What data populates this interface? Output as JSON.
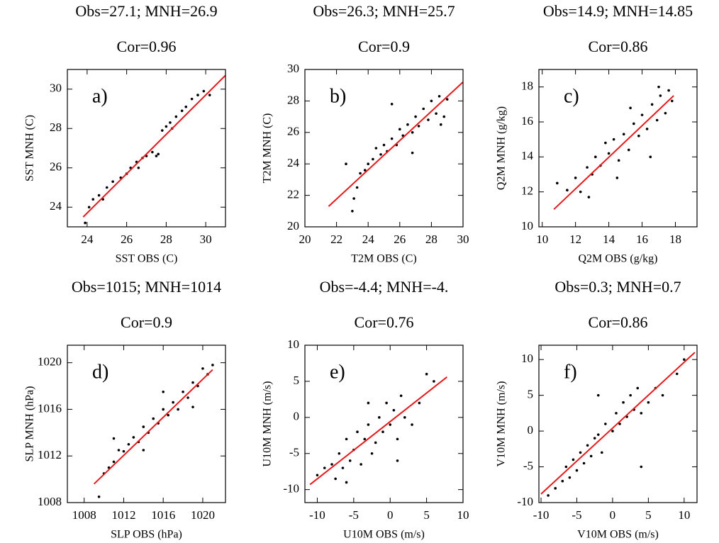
{
  "chart_data": [
    {
      "type": "scatter",
      "title": "Obs=27.1; MNH=26.9",
      "subtitle": "Cor=0.96",
      "panel_label": "a)",
      "xlabel": "SST OBS (C)",
      "ylabel": "SST MNH (C)",
      "xlim": [
        23,
        31
      ],
      "ylim": [
        23,
        31
      ],
      "xticks": [
        24,
        26,
        28,
        30
      ],
      "yticks": [
        24,
        26,
        28,
        30
      ],
      "series": [
        {
          "color": "#000000",
          "x": [
            23.9,
            24.1,
            24.3,
            24.6,
            25.0,
            25.3,
            25.7,
            26.0,
            26.2,
            26.5,
            26.8,
            27.0,
            27.3,
            27.5,
            27.8,
            28.0,
            28.2,
            28.5,
            28.8,
            29.0,
            29.3,
            29.6,
            29.9,
            30.2,
            24.8,
            26.6,
            27.6,
            28.3
          ],
          "values": [
            23.2,
            24.0,
            24.4,
            24.6,
            25.0,
            25.3,
            25.5,
            25.7,
            26.0,
            26.3,
            26.5,
            26.6,
            26.8,
            26.6,
            27.9,
            28.1,
            28.3,
            28.6,
            28.9,
            29.1,
            29.5,
            29.7,
            29.9,
            29.7,
            24.4,
            26.0,
            26.7,
            28.0
          ]
        },
        {
          "type": "line",
          "color": "#e41a1c",
          "x": [
            23.8,
            31
          ],
          "values": [
            23.5,
            30.7
          ]
        }
      ]
    },
    {
      "type": "scatter",
      "title": "Obs=26.3; MNH=25.7",
      "subtitle": "Cor=0.9",
      "panel_label": "b)",
      "xlabel": "T2M OBS (C)",
      "ylabel": "T2M MNH (C)",
      "xlim": [
        20,
        30
      ],
      "ylim": [
        20,
        30
      ],
      "xticks": [
        20,
        22,
        24,
        26,
        28,
        30
      ],
      "yticks": [
        20,
        22,
        24,
        26,
        28,
        30
      ],
      "series": [
        {
          "color": "#000000",
          "x": [
            23.0,
            23.1,
            23.3,
            23.5,
            23.8,
            24.0,
            24.3,
            24.5,
            24.8,
            25.0,
            25.2,
            25.5,
            25.8,
            26.0,
            26.2,
            26.5,
            26.8,
            27.0,
            27.2,
            27.5,
            27.8,
            28.0,
            28.3,
            28.5,
            28.8,
            29.0,
            22.6,
            25.5,
            26.8,
            28.6
          ],
          "values": [
            21.0,
            21.8,
            22.5,
            23.4,
            23.6,
            24.0,
            24.3,
            25.0,
            24.6,
            25.2,
            24.8,
            25.6,
            25.2,
            26.2,
            25.8,
            26.5,
            26.0,
            27.0,
            26.4,
            27.5,
            26.8,
            28.0,
            27.2,
            28.3,
            27.0,
            28.1,
            24.0,
            27.8,
            24.7,
            26.5
          ]
        },
        {
          "type": "line",
          "color": "#e41a1c",
          "x": [
            21.5,
            30
          ],
          "values": [
            21.3,
            29.2
          ]
        }
      ]
    },
    {
      "type": "scatter",
      "title": "Obs=14.9; MNH=14.85",
      "subtitle": "Cor=0.86",
      "panel_label": "c)",
      "xlabel": "Q2M OBS (g/kg)",
      "ylabel": "Q2M MNH (g/kg)",
      "xlim": [
        9.8,
        19.3
      ],
      "ylim": [
        10,
        19
      ],
      "xticks": [
        10,
        12,
        14,
        16,
        18
      ],
      "yticks": [
        10,
        12,
        14,
        16,
        18
      ],
      "series": [
        {
          "color": "#000000",
          "x": [
            10.9,
            11.5,
            12.0,
            12.3,
            12.7,
            13.0,
            13.2,
            13.5,
            13.8,
            14.0,
            14.3,
            14.6,
            14.9,
            15.2,
            15.5,
            15.8,
            16.0,
            16.3,
            16.6,
            16.9,
            17.1,
            17.4,
            17.6,
            17.8,
            12.8,
            14.5,
            15.3,
            16.5,
            17.0
          ],
          "values": [
            12.5,
            12.1,
            12.8,
            12.0,
            13.4,
            13.0,
            14.0,
            13.5,
            14.8,
            14.2,
            15.0,
            13.8,
            15.3,
            14.4,
            15.9,
            15.2,
            16.4,
            15.6,
            17.0,
            16.1,
            17.5,
            16.5,
            17.8,
            17.2,
            11.7,
            12.8,
            16.8,
            14.0,
            18.0
          ]
        },
        {
          "type": "line",
          "color": "#e41a1c",
          "x": [
            10.7,
            17.9
          ],
          "values": [
            11,
            17.5
          ]
        }
      ]
    },
    {
      "type": "scatter",
      "title": "Obs=1015; MNH=1014",
      "subtitle": "Cor=0.9",
      "panel_label": "d)",
      "xlabel": "SLP OBS (hPa)",
      "ylabel": "SLP MNH (hPa)",
      "xlim": [
        1006.3,
        1022.3
      ],
      "ylim": [
        1008,
        1021.5
      ],
      "xticks": [
        1008,
        1012,
        1016,
        1020
      ],
      "yticks": [
        1008,
        1012,
        1016,
        1020
      ],
      "series": [
        {
          "color": "#000000",
          "x": [
            1009.5,
            1010,
            1010.5,
            1011,
            1011.5,
            1012,
            1012.5,
            1013,
            1013.5,
            1014,
            1014.5,
            1015,
            1015.5,
            1016,
            1016.5,
            1017,
            1017.5,
            1018,
            1018.5,
            1019,
            1019.5,
            1020,
            1020.5,
            1021,
            1011,
            1014,
            1016,
            1019
          ],
          "values": [
            1008.5,
            1010.5,
            1011.0,
            1011.5,
            1012.5,
            1012.4,
            1013.0,
            1013.6,
            1013.2,
            1014.5,
            1014.0,
            1015.2,
            1014.8,
            1016.0,
            1015.5,
            1016.6,
            1016.0,
            1017.5,
            1017.0,
            1018.3,
            1018.0,
            1019.5,
            1019.0,
            1019.8,
            1013.5,
            1012.5,
            1017.5,
            1016.2
          ]
        },
        {
          "type": "line",
          "color": "#e41a1c",
          "x": [
            1009,
            1021
          ],
          "values": [
            1009.6,
            1019.4
          ]
        }
      ]
    },
    {
      "type": "scatter",
      "title": "Obs=-4.4; MNH=-4.",
      "subtitle": "Cor=0.76",
      "panel_label": "e)",
      "xlabel": "U10M OBS (m/s)",
      "ylabel": "U10M MNH (m/s)",
      "xlim": [
        -11.7,
        10
      ],
      "ylim": [
        -11.8,
        10
      ],
      "xticks": [
        -10,
        -5,
        0,
        5,
        10
      ],
      "yticks": [
        -10,
        -5,
        0,
        5,
        10
      ],
      "series": [
        {
          "color": "#000000",
          "x": [
            -10,
            -9,
            -8,
            -7.5,
            -7,
            -6.5,
            -6,
            -5.5,
            -5,
            -4.5,
            -4,
            -3.5,
            -3,
            -2.5,
            -2,
            -1.5,
            -1,
            -0.5,
            0,
            0.5,
            1,
            1.5,
            2,
            3,
            4,
            5,
            6,
            -6,
            -3,
            1
          ],
          "values": [
            -8,
            -7,
            -6.5,
            -8.5,
            -5,
            -7,
            -3,
            -6,
            -4.5,
            -2,
            -6.5,
            -3,
            -1,
            -5,
            -3.5,
            0,
            -2,
            2,
            -1,
            1,
            -3,
            3,
            0,
            -1,
            2,
            6,
            5,
            -9,
            2,
            -6
          ]
        },
        {
          "type": "line",
          "color": "#e41a1c",
          "x": [
            -11,
            7.8
          ],
          "values": [
            -9.3,
            5.6
          ]
        }
      ]
    },
    {
      "type": "scatter",
      "title": "Obs=0.3; MNH=0.7",
      "subtitle": "Cor=0.86",
      "panel_label": "f)",
      "xlabel": "V10M OBS (m/s)",
      "ylabel": "V10M MNH (m/s)",
      "xlim": [
        -10.3,
        11.8
      ],
      "ylim": [
        -10,
        12
      ],
      "xticks": [
        -10,
        -5,
        0,
        5,
        10
      ],
      "yticks": [
        -10,
        -5,
        0,
        5,
        10
      ],
      "series": [
        {
          "color": "#000000",
          "x": [
            -9,
            -8,
            -7,
            -6.5,
            -6,
            -5.5,
            -5,
            -4.5,
            -4,
            -3.5,
            -3,
            -2.5,
            -2,
            -1.5,
            -1,
            0,
            0.5,
            1,
            1.5,
            2,
            2.5,
            3,
            3.5,
            4,
            5,
            6,
            7,
            9,
            10,
            4,
            -2
          ],
          "values": [
            -9,
            -8,
            -7,
            -5,
            -6.5,
            -4,
            -5.5,
            -3,
            -4.5,
            -2,
            -3.5,
            -1,
            -0.5,
            -3,
            1,
            0,
            2.5,
            1,
            4,
            2,
            5,
            3,
            6,
            2.5,
            4,
            6,
            5,
            8,
            10,
            -5,
            5
          ]
        },
        {
          "type": "line",
          "color": "#e41a1c",
          "x": [
            -10,
            11.5
          ],
          "values": [
            -8.8,
            11
          ]
        }
      ]
    }
  ]
}
